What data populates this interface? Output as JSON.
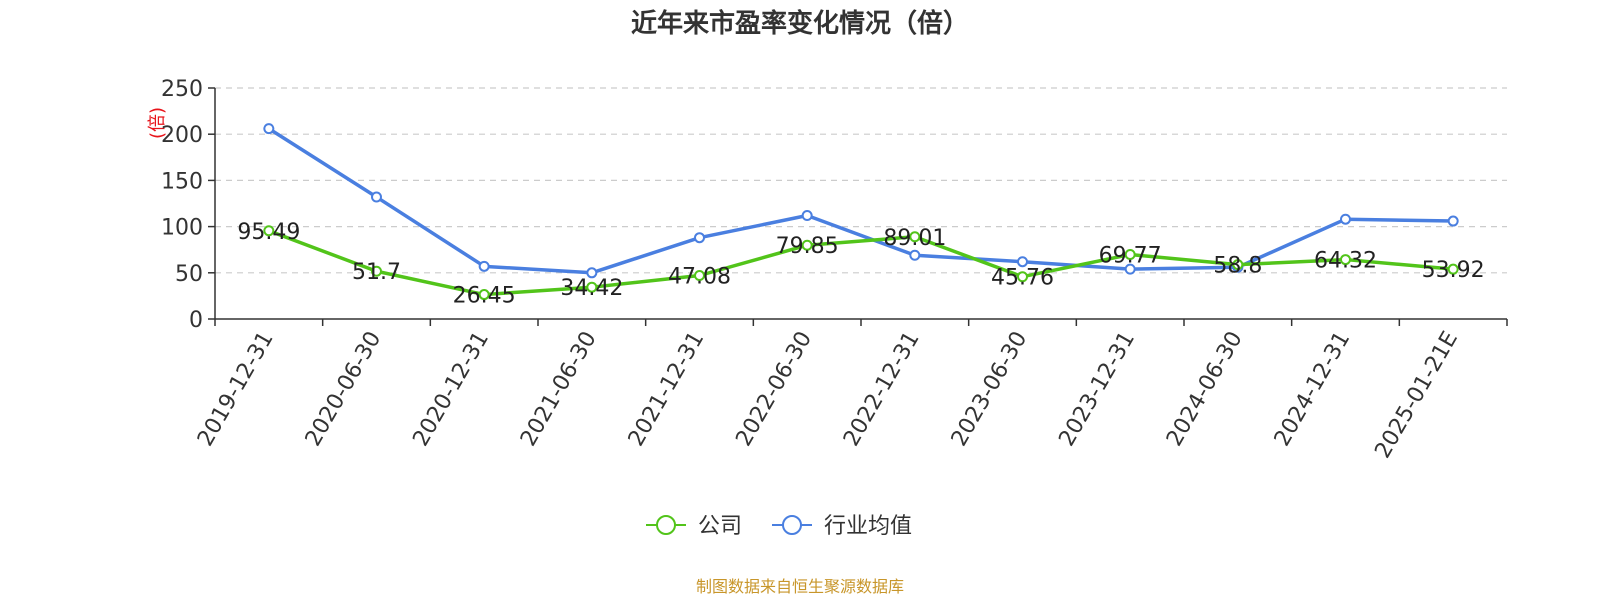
{
  "chart_data": {
    "type": "line",
    "title": "近年来市盈率变化情况（倍）",
    "unit_label": "(倍)",
    "categories": [
      "2019-12-31",
      "2020-06-30",
      "2020-12-31",
      "2021-06-30",
      "2021-12-31",
      "2022-06-30",
      "2022-12-31",
      "2023-06-30",
      "2023-12-31",
      "2024-06-30",
      "2024-12-31",
      "2025-01-21E"
    ],
    "ylim": [
      0,
      250
    ],
    "yticks": [
      0,
      50,
      100,
      150,
      200,
      250
    ],
    "grid": true,
    "legend_position": "bottom",
    "series": [
      {
        "name": "公司",
        "color": "#52c41a",
        "values": [
          95.49,
          51.7,
          26.45,
          34.42,
          47.08,
          79.85,
          89.01,
          45.76,
          69.77,
          58.8,
          64.32,
          53.92
        ],
        "labels": [
          "95.49",
          "51.7",
          "26.45",
          "34.42",
          "47.08",
          "79.85",
          "89.01",
          "45.76",
          "69.77",
          "58.8",
          "64.32",
          "53.92"
        ]
      },
      {
        "name": "行业均值",
        "color": "#4a7fe0",
        "values": [
          206,
          132,
          57,
          50,
          88,
          112,
          69,
          62,
          54,
          56,
          108,
          106
        ]
      }
    ]
  },
  "source": "制图数据来自恒生聚源数据库"
}
